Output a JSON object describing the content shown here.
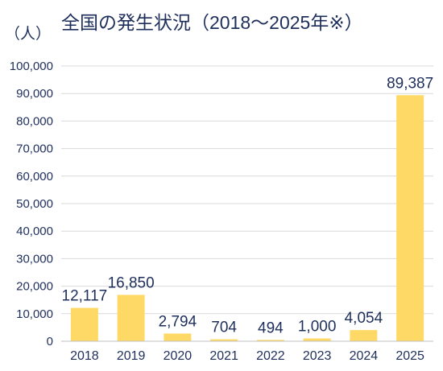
{
  "chart_data": {
    "type": "bar",
    "title": "全国の発生状況（2018～2025年※）",
    "unit_label": "（人）",
    "xlabel": "",
    "ylabel": "",
    "categories": [
      "2018",
      "2019",
      "2020",
      "2021",
      "2022",
      "2023",
      "2024",
      "2025"
    ],
    "values": [
      12117,
      16850,
      2794,
      704,
      494,
      1000,
      4054,
      89387
    ],
    "data_labels": [
      "12,117",
      "16,850",
      "2,794",
      "704",
      "494",
      "1,000",
      "4,054",
      "89,387"
    ],
    "ylim": [
      0,
      100000
    ],
    "yticks": [
      0,
      10000,
      20000,
      30000,
      40000,
      50000,
      60000,
      70000,
      80000,
      90000,
      100000
    ],
    "ytick_labels": [
      "0",
      "10,000",
      "20,000",
      "30,000",
      "40,000",
      "50,000",
      "60,000",
      "70,000",
      "80,000",
      "90,000",
      "100,000"
    ],
    "grid": true,
    "bar_color": "#ffd966",
    "text_color": "#1f2f5c"
  }
}
